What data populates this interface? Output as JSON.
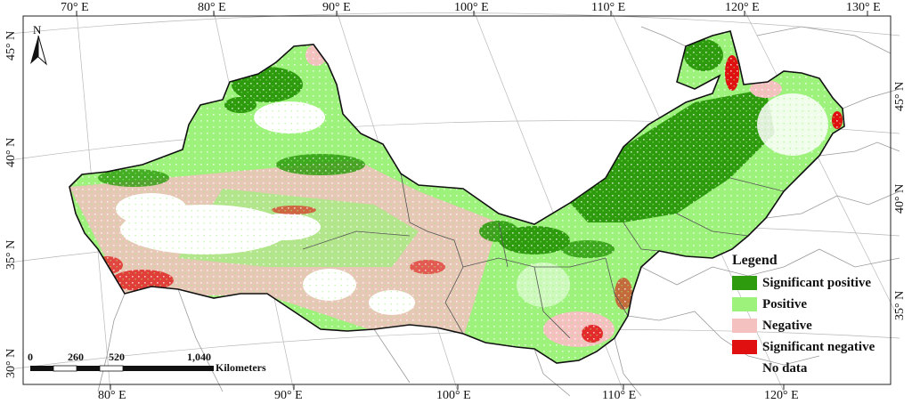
{
  "top_labels": [
    "70° E",
    "80° E",
    "90° E",
    "100° E",
    "110° E",
    "120° E",
    "130° E"
  ],
  "bottom_labels": [
    "80° E",
    "90° E",
    "100° E",
    "110° E",
    "120° E"
  ],
  "left_labels": [
    "45° N",
    "40° N",
    "35° N",
    "30° N"
  ],
  "right_labels": [
    "45° N",
    "40° N",
    "35° N"
  ],
  "north_label": "N",
  "legend": {
    "title": "Legend",
    "items": [
      {
        "label": "Significant positive",
        "color": "#2e9b0e"
      },
      {
        "label": "Positive",
        "color": "#9cf27a"
      },
      {
        "label": "Negative",
        "color": "#f5c0c0"
      },
      {
        "label": "Significant negative",
        "color": "#e01010"
      },
      {
        "label": "No data",
        "color": "#ffffff"
      }
    ]
  },
  "scale_bar": {
    "ticks": [
      "0",
      "260",
      "520",
      "1,040"
    ],
    "unit": "Kilometers"
  }
}
